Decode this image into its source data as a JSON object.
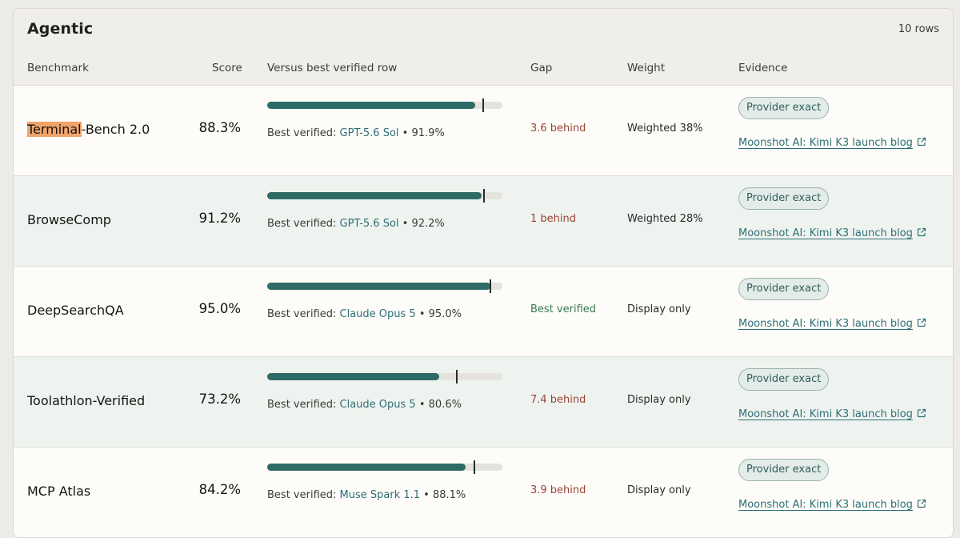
{
  "section": {
    "title": "Agentic",
    "row_count": "10 rows"
  },
  "columns": {
    "benchmark": "Benchmark",
    "score": "Score",
    "versus": "Versus best verified row",
    "gap": "Gap",
    "weight": "Weight",
    "evidence": "Evidence"
  },
  "labels": {
    "best_prefix": "Best verified: ",
    "separator": " • "
  },
  "colors": {
    "bar_fill": "#2f6b66",
    "gap_behind": "#9a4436",
    "gap_best": "#3b7a52",
    "link": "#2d6e77",
    "search_highlight": "#f1a46a"
  },
  "rows": [
    {
      "benchmark_highlight": "Terminal",
      "benchmark_rest": "-Bench 2.0",
      "score": "88.3%",
      "score_value": 88.3,
      "best_model": "GPT-5.6 Sol",
      "best_score": "91.9%",
      "best_value": 91.9,
      "gap": "3.6 behind",
      "gap_type": "behind",
      "weight": "Weighted 38%",
      "badge": "Provider exact",
      "evidence_link": "Moonshot AI: Kimi K3 launch blog"
    },
    {
      "benchmark_highlight": "",
      "benchmark_rest": "BrowseComp",
      "score": "91.2%",
      "score_value": 91.2,
      "best_model": "GPT-5.6 Sol",
      "best_score": "92.2%",
      "best_value": 92.2,
      "gap": "1 behind",
      "gap_type": "behind",
      "weight": "Weighted 28%",
      "badge": "Provider exact",
      "evidence_link": "Moonshot AI: Kimi K3 launch blog"
    },
    {
      "benchmark_highlight": "",
      "benchmark_rest": "DeepSearchQA",
      "score": "95.0%",
      "score_value": 95.0,
      "best_model": "Claude Opus 5",
      "best_score": "95.0%",
      "best_value": 95.0,
      "gap": "Best verified",
      "gap_type": "best",
      "weight": "Display only",
      "badge": "Provider exact",
      "evidence_link": "Moonshot AI: Kimi K3 launch blog"
    },
    {
      "benchmark_highlight": "",
      "benchmark_rest": "Toolathlon-Verified",
      "score": "73.2%",
      "score_value": 73.2,
      "best_model": "Claude Opus 5",
      "best_score": "80.6%",
      "best_value": 80.6,
      "gap": "7.4 behind",
      "gap_type": "behind",
      "weight": "Display only",
      "badge": "Provider exact",
      "evidence_link": "Moonshot AI: Kimi K3 launch blog"
    },
    {
      "benchmark_highlight": "",
      "benchmark_rest": "MCP Atlas",
      "score": "84.2%",
      "score_value": 84.2,
      "best_model": "Muse Spark 1.1",
      "best_score": "88.1%",
      "best_value": 88.1,
      "gap": "3.9 behind",
      "gap_type": "behind",
      "weight": "Display only",
      "badge": "Provider exact",
      "evidence_link": "Moonshot AI: Kimi K3 launch blog"
    }
  ]
}
